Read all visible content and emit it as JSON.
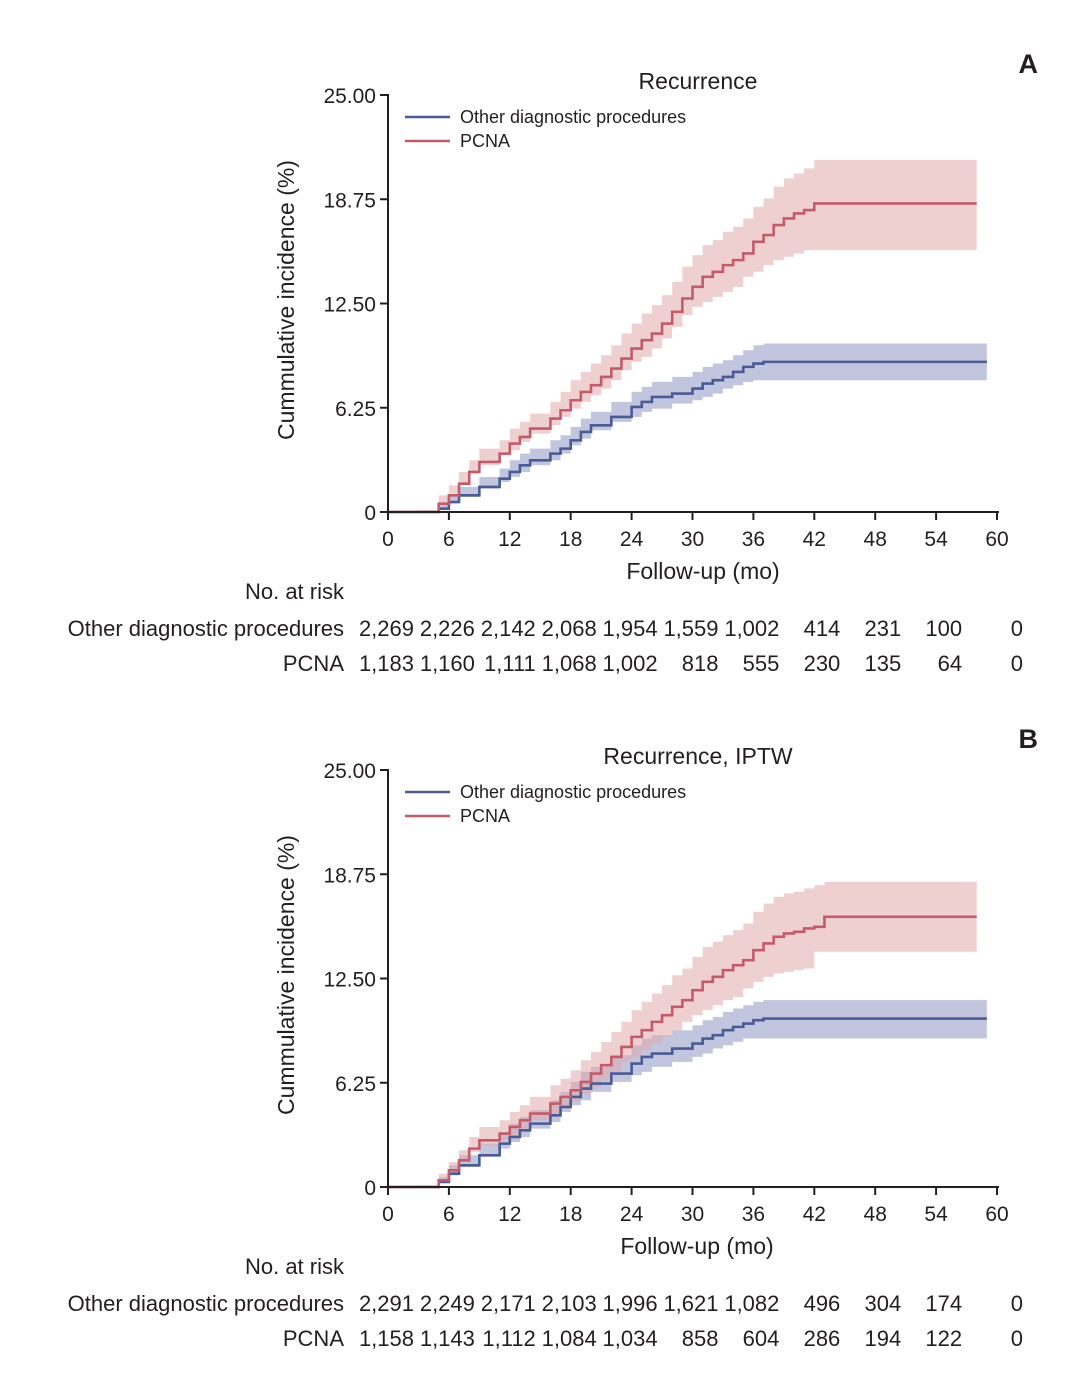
{
  "chart_data": [
    {
      "panel": "A",
      "type": "line",
      "title": "Recurrence",
      "xlabel": "Follow-up (mo)",
      "ylabel": "Cummulative incidence (%)",
      "xlim": [
        0,
        60
      ],
      "ylim": [
        0,
        25
      ],
      "x_ticks": [
        "0",
        "6",
        "12",
        "18",
        "24",
        "30",
        "36",
        "42",
        "48",
        "54",
        "60"
      ],
      "y_ticks": [
        "0",
        "6.25",
        "12.50",
        "18.75",
        "25.00"
      ],
      "legend": [
        "Other diagnostic procedures",
        "PCNA"
      ],
      "series": [
        {
          "name": "Other diagnostic procedures",
          "color": "#4a5b95",
          "band_color": "#8e97c2",
          "x": [
            0,
            3,
            5,
            6,
            7,
            9,
            11,
            12,
            13,
            14,
            16,
            17,
            18,
            19,
            20,
            22,
            24,
            25,
            26,
            28,
            30,
            31,
            32,
            33,
            34,
            35,
            36,
            37,
            40,
            48,
            55,
            59
          ],
          "values": [
            0,
            0,
            0.2,
            0.6,
            1.0,
            1.5,
            2.0,
            2.4,
            2.8,
            3.1,
            3.5,
            3.8,
            4.3,
            4.8,
            5.2,
            5.7,
            6.3,
            6.6,
            6.9,
            7.1,
            7.4,
            7.7,
            7.9,
            8.1,
            8.4,
            8.7,
            8.9,
            9.0,
            9.0,
            9.0,
            9.0,
            9.0
          ],
          "lower": [
            0,
            0,
            0.0,
            0.2,
            0.5,
            0.9,
            1.4,
            1.8,
            2.1,
            2.4,
            2.8,
            3.1,
            3.5,
            4.0,
            4.4,
            4.9,
            5.4,
            5.7,
            6.0,
            6.2,
            6.5,
            6.7,
            6.9,
            7.1,
            7.4,
            7.6,
            7.8,
            7.9,
            7.9,
            7.9,
            7.9,
            7.9
          ],
          "upper": [
            0,
            0,
            0.5,
            1.0,
            1.5,
            2.1,
            2.6,
            3.1,
            3.5,
            3.8,
            4.3,
            4.6,
            5.1,
            5.6,
            6.0,
            6.6,
            7.2,
            7.5,
            7.8,
            8.1,
            8.4,
            8.7,
            8.9,
            9.1,
            9.4,
            9.7,
            10.0,
            10.1,
            10.1,
            10.1,
            10.1,
            10.1
          ]
        },
        {
          "name": "PCNA",
          "color": "#c45a6a",
          "band_color": "#e2a9ac",
          "x": [
            0,
            3,
            5,
            6,
            7,
            8,
            9,
            11,
            12,
            13,
            14,
            16,
            17,
            18,
            19,
            20,
            21,
            22,
            23,
            24,
            25,
            26,
            27,
            28,
            29,
            30,
            31,
            32,
            33,
            34,
            35,
            36,
            37,
            38,
            39,
            40,
            41,
            42,
            43,
            45,
            50,
            58
          ],
          "values": [
            0,
            0,
            0.5,
            1.0,
            1.7,
            2.4,
            3.0,
            3.5,
            4.1,
            4.5,
            5.0,
            5.6,
            6.1,
            6.7,
            7.2,
            7.6,
            8.1,
            8.6,
            9.2,
            9.8,
            10.3,
            10.7,
            11.3,
            12.0,
            12.8,
            13.5,
            14.1,
            14.4,
            14.8,
            15.1,
            15.5,
            16.2,
            16.6,
            17.2,
            17.6,
            17.9,
            18.1,
            18.5,
            18.5,
            18.5,
            18.5,
            18.5
          ],
          "lower": [
            0,
            0,
            0.1,
            0.5,
            1.1,
            1.7,
            2.3,
            2.8,
            3.4,
            3.7,
            4.2,
            4.7,
            5.2,
            5.7,
            6.2,
            6.6,
            7.0,
            7.4,
            7.9,
            8.5,
            9.0,
            9.3,
            9.8,
            10.4,
            11.1,
            11.8,
            12.3,
            12.6,
            12.9,
            13.2,
            13.5,
            14.1,
            14.4,
            14.8,
            15.1,
            15.3,
            15.5,
            15.7,
            15.7,
            15.7,
            15.7,
            15.7
          ],
          "upper": [
            0,
            0,
            1.0,
            1.6,
            2.4,
            3.1,
            3.8,
            4.3,
            5.0,
            5.4,
            5.9,
            6.6,
            7.2,
            7.9,
            8.4,
            8.9,
            9.4,
            10.0,
            10.7,
            11.3,
            11.9,
            12.4,
            13.0,
            13.8,
            14.7,
            15.4,
            16.0,
            16.3,
            16.8,
            17.1,
            17.6,
            18.3,
            18.8,
            19.5,
            20.0,
            20.3,
            20.6,
            21.1,
            21.1,
            21.1,
            21.1,
            21.1
          ]
        }
      ],
      "at_risk": {
        "heading": "No. at risk",
        "rows": [
          {
            "label": "Other diagnostic procedures",
            "values": [
              "2,269",
              "2,226",
              "2,142",
              "2,068",
              "1,954",
              "1,559",
              "1,002",
              "414",
              "231",
              "100",
              "0"
            ]
          },
          {
            "label": "PCNA",
            "values": [
              "1,183",
              "1,160",
              "1,111",
              "1,068",
              "1,002",
              "818",
              "555",
              "230",
              "135",
              "64",
              "0"
            ]
          }
        ]
      }
    },
    {
      "panel": "B",
      "type": "line",
      "title": "Recurrence, IPTW",
      "xlabel": "Follow-up (mo)",
      "ylabel": "Cummulative incidence (%)",
      "xlim": [
        0,
        60
      ],
      "ylim": [
        0,
        25
      ],
      "x_ticks": [
        "0",
        "6",
        "12",
        "18",
        "24",
        "30",
        "36",
        "42",
        "48",
        "54",
        "60"
      ],
      "y_ticks": [
        "0",
        "6.25",
        "12.50",
        "18.75",
        "25.00"
      ],
      "legend": [
        "Other diagnostic procedures",
        "PCNA"
      ],
      "series": [
        {
          "name": "Other diagnostic procedures",
          "color": "#4a5b95",
          "band_color": "#8e97c2",
          "x": [
            0,
            3,
            5,
            6,
            7,
            9,
            11,
            12,
            13,
            14,
            16,
            17,
            18,
            19,
            20,
            22,
            24,
            25,
            26,
            28,
            30,
            31,
            32,
            33,
            34,
            35,
            36,
            37,
            40,
            48,
            55,
            59
          ],
          "values": [
            0,
            0,
            0.3,
            0.8,
            1.3,
            1.9,
            2.6,
            3.0,
            3.4,
            3.8,
            4.3,
            4.8,
            5.4,
            5.9,
            6.2,
            6.8,
            7.4,
            7.8,
            8.0,
            8.3,
            8.6,
            8.9,
            9.1,
            9.4,
            9.6,
            9.8,
            10.0,
            10.1,
            10.1,
            10.1,
            10.1,
            10.1
          ],
          "lower": [
            0,
            0,
            0.0,
            0.3,
            0.7,
            1.2,
            1.9,
            2.3,
            2.7,
            3.0,
            3.5,
            3.9,
            4.5,
            4.9,
            5.2,
            5.7,
            6.3,
            6.7,
            6.9,
            7.2,
            7.5,
            7.8,
            8.0,
            8.3,
            8.5,
            8.7,
            8.9,
            8.9,
            8.9,
            8.9,
            8.9,
            8.9
          ],
          "upper": [
            0,
            0,
            0.6,
            1.3,
            1.9,
            2.6,
            3.3,
            3.8,
            4.2,
            4.6,
            5.2,
            5.7,
            6.3,
            6.9,
            7.2,
            7.9,
            8.5,
            8.9,
            9.1,
            9.4,
            9.7,
            10.0,
            10.2,
            10.5,
            10.7,
            10.9,
            11.1,
            11.2,
            11.2,
            11.2,
            11.2,
            11.2
          ]
        },
        {
          "name": "PCNA",
          "color": "#c45a6a",
          "band_color": "#e2a9ac",
          "x": [
            0,
            3,
            5,
            6,
            7,
            8,
            9,
            11,
            12,
            13,
            14,
            16,
            17,
            18,
            19,
            20,
            21,
            22,
            23,
            24,
            25,
            26,
            27,
            28,
            29,
            30,
            31,
            32,
            33,
            34,
            35,
            36,
            37,
            38,
            39,
            40,
            41,
            42,
            43,
            45,
            50,
            58
          ],
          "values": [
            0,
            0,
            0.4,
            1.0,
            1.6,
            2.3,
            2.8,
            3.2,
            3.6,
            4.0,
            4.4,
            5.0,
            5.4,
            5.8,
            6.3,
            6.8,
            7.3,
            7.8,
            8.4,
            9.0,
            9.4,
            9.9,
            10.3,
            10.8,
            11.2,
            11.8,
            12.3,
            12.6,
            13.0,
            13.3,
            13.6,
            14.2,
            14.6,
            15.0,
            15.2,
            15.3,
            15.5,
            15.6,
            16.2,
            16.2,
            16.2,
            16.2
          ],
          "lower": [
            0,
            0,
            0.1,
            0.5,
            1.0,
            1.6,
            2.1,
            2.5,
            2.8,
            3.1,
            3.5,
            4.0,
            4.4,
            4.7,
            5.1,
            5.6,
            6.0,
            6.4,
            6.9,
            7.5,
            7.8,
            8.2,
            8.6,
            9.0,
            9.4,
            9.9,
            10.3,
            10.6,
            10.9,
            11.2,
            11.4,
            11.9,
            12.3,
            12.6,
            12.8,
            12.9,
            13.0,
            13.1,
            14.1,
            14.1,
            14.1,
            14.1
          ],
          "upper": [
            0,
            0,
            0.8,
            1.5,
            2.2,
            3.0,
            3.6,
            4.0,
            4.5,
            4.9,
            5.4,
            6.1,
            6.5,
            7.0,
            7.6,
            8.1,
            8.7,
            9.3,
            9.9,
            10.6,
            11.1,
            11.6,
            12.1,
            12.7,
            13.1,
            13.8,
            14.4,
            14.7,
            15.1,
            15.4,
            15.8,
            16.5,
            17.0,
            17.4,
            17.6,
            17.7,
            17.9,
            18.1,
            18.3,
            18.3,
            18.3,
            18.3
          ]
        }
      ],
      "at_risk": {
        "heading": "No. at risk",
        "rows": [
          {
            "label": "Other diagnostic procedures",
            "values": [
              "2,291",
              "2,249",
              "2,171",
              "2,103",
              "1,996",
              "1,621",
              "1,082",
              "496",
              "304",
              "174",
              "0"
            ]
          },
          {
            "label": "PCNA",
            "values": [
              "1,158",
              "1,143",
              "1,112",
              "1,084",
              "1,034",
              "858",
              "604",
              "286",
              "194",
              "122",
              "0"
            ]
          }
        ]
      }
    }
  ]
}
